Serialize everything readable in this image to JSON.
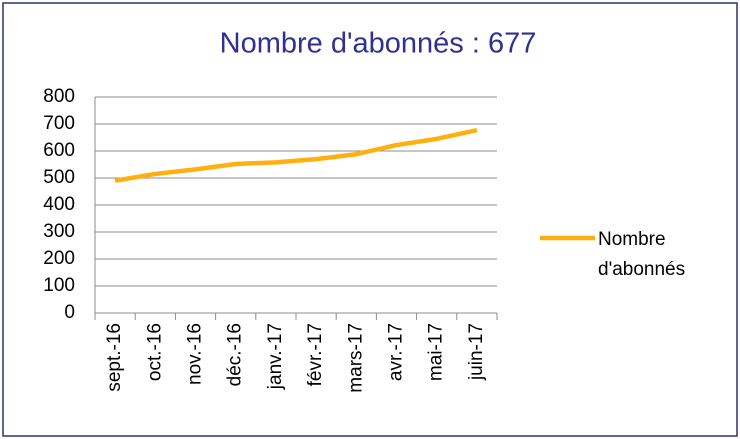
{
  "chart_data": {
    "type": "line",
    "title": "Nombre d'abonnés : 677",
    "categories": [
      "sept.-16",
      "oct.-16",
      "nov.-16",
      "déc.-16",
      "janv.-17",
      "févr.-17",
      "mars-17",
      "avr.-17",
      "mai-17",
      "juin-17"
    ],
    "series": [
      {
        "name": "Nombre d'abonnés",
        "color": "#ffb010",
        "values": [
          490,
          515,
          532,
          552,
          558,
          570,
          588,
          622,
          645,
          677
        ]
      }
    ],
    "ylim": [
      0,
      800
    ],
    "yticks": [
      0,
      100,
      200,
      300,
      400,
      500,
      600,
      700,
      800
    ],
    "grid": true,
    "legend": "right"
  }
}
